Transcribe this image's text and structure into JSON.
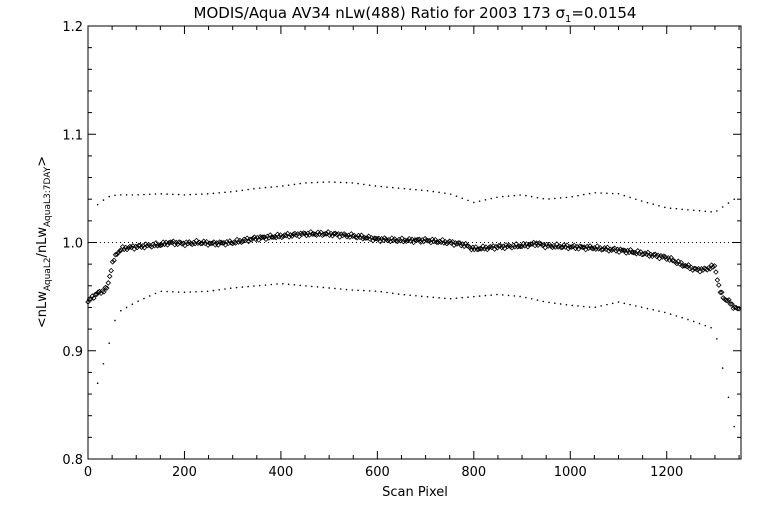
{
  "chart_data": {
    "type": "scatter",
    "title": {
      "prefix": "MODIS/Aqua AV34 nLw(488) Ratio for 2003 173 ",
      "sigma_symbol": "σ",
      "sigma_subscript": "1",
      "sigma_value": "=0.0154"
    },
    "xlabel": "Scan Pixel",
    "ylabel": {
      "open": "<nLw",
      "sub1": "AquaL2",
      "mid": "/nLw",
      "sub2": "AquaL3:7DAY",
      "close": ">"
    },
    "xlim": [
      0,
      1354
    ],
    "ylim": [
      0.8,
      1.2
    ],
    "xticks": [
      0,
      200,
      400,
      600,
      800,
      1000,
      1200
    ],
    "xtick_labels": [
      "0",
      "200",
      "400",
      "600",
      "800",
      "1000",
      "1200"
    ],
    "yticks": [
      0.8,
      0.9,
      1.0,
      1.1,
      1.2
    ],
    "ytick_labels": [
      "0.8",
      "0.9",
      "1.0",
      "1.1",
      "1.2"
    ],
    "reference_line": 1.0,
    "grid": false,
    "legend": "none",
    "series": [
      {
        "role": "mean",
        "marker": "diamond",
        "color": "#000000",
        "x": [
          0,
          10,
          20,
          30,
          40,
          50,
          60,
          70,
          80,
          100,
          120,
          150,
          170,
          200,
          230,
          260,
          300,
          350,
          400,
          450,
          500,
          550,
          600,
          650,
          700,
          750,
          780,
          800,
          850,
          900,
          930,
          950,
          1000,
          1050,
          1100,
          1150,
          1200,
          1230,
          1260,
          1280,
          1290,
          1300,
          1310,
          1320,
          1330,
          1340,
          1350
        ],
        "y": [
          0.945,
          0.95,
          0.953,
          0.955,
          0.958,
          0.98,
          0.99,
          0.994,
          0.995,
          0.996,
          0.997,
          0.998,
          1.0,
          0.999,
          1.0,
          0.999,
          1.0,
          1.004,
          1.006,
          1.008,
          1.008,
          1.006,
          1.003,
          1.002,
          1.002,
          1.0,
          0.998,
          0.994,
          0.996,
          0.997,
          0.999,
          0.997,
          0.996,
          0.995,
          0.993,
          0.99,
          0.986,
          0.98,
          0.975,
          0.975,
          0.977,
          0.978,
          0.955,
          0.948,
          0.945,
          0.94,
          0.938
        ]
      },
      {
        "role": "upper-bound",
        "marker": "dot",
        "color": "#000000",
        "x": [
          20,
          40,
          60,
          100,
          150,
          200,
          250,
          300,
          350,
          400,
          450,
          500,
          550,
          600,
          650,
          700,
          750,
          800,
          850,
          900,
          950,
          1000,
          1050,
          1100,
          1150,
          1200,
          1250,
          1300,
          1340
        ],
        "y": [
          1.035,
          1.042,
          1.044,
          1.044,
          1.045,
          1.044,
          1.045,
          1.047,
          1.05,
          1.052,
          1.055,
          1.056,
          1.055,
          1.052,
          1.05,
          1.048,
          1.045,
          1.037,
          1.042,
          1.044,
          1.04,
          1.042,
          1.046,
          1.045,
          1.038,
          1.032,
          1.03,
          1.028,
          1.04
        ]
      },
      {
        "role": "lower-bound",
        "marker": "dot",
        "color": "#000000",
        "x": [
          20,
          40,
          60,
          100,
          150,
          200,
          250,
          300,
          350,
          400,
          450,
          500,
          550,
          600,
          650,
          700,
          750,
          800,
          850,
          900,
          950,
          1000,
          1050,
          1100,
          1150,
          1200,
          1250,
          1300,
          1340
        ],
        "y": [
          0.87,
          0.9,
          0.935,
          0.945,
          0.955,
          0.954,
          0.955,
          0.958,
          0.96,
          0.962,
          0.96,
          0.958,
          0.956,
          0.955,
          0.952,
          0.95,
          0.948,
          0.95,
          0.952,
          0.95,
          0.945,
          0.942,
          0.94,
          0.945,
          0.94,
          0.935,
          0.928,
          0.92,
          0.83
        ]
      }
    ]
  }
}
